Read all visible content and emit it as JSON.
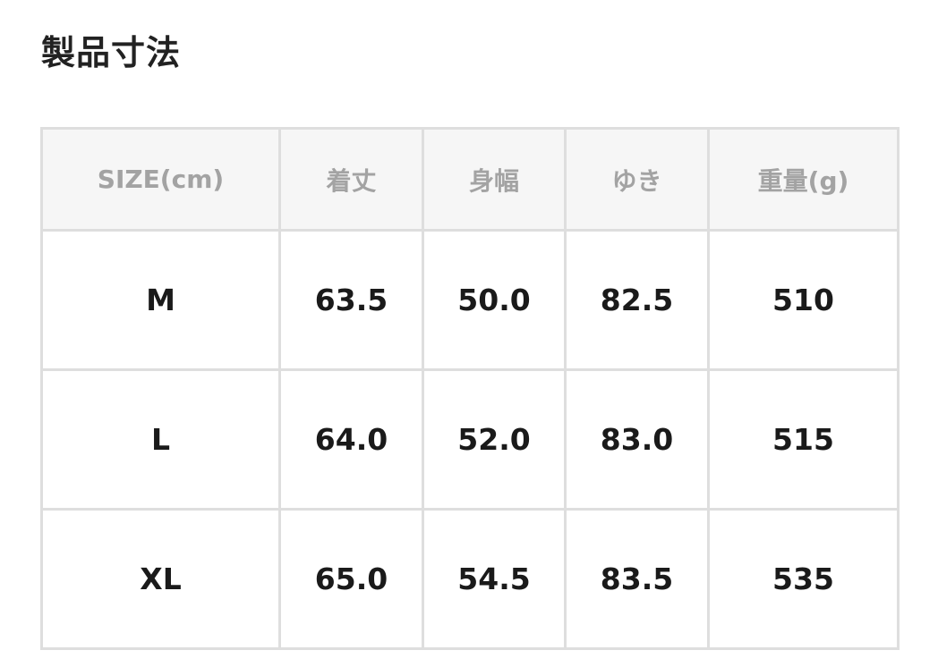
{
  "title": "製品寸法",
  "table": {
    "headers": [
      "SIZE(cm)",
      "着丈",
      "身幅",
      "ゆき",
      "重量(g)"
    ],
    "rows": [
      [
        "M",
        "63.5",
        "50.0",
        "82.5",
        "510"
      ],
      [
        "L",
        "64.0",
        "52.0",
        "83.0",
        "515"
      ],
      [
        "XL",
        "65.0",
        "54.5",
        "83.5",
        "535"
      ]
    ]
  }
}
